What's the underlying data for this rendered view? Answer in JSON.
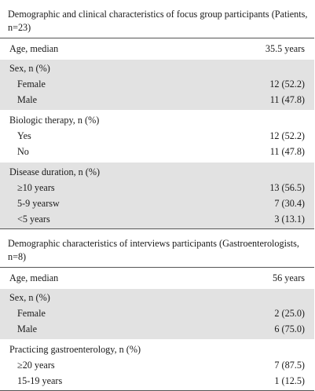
{
  "table1": {
    "caption": "Demographic and clinical characteristics of focus group participants (Patients, n=23)",
    "groups": [
      {
        "rows": [
          {
            "label": "Age, median",
            "value": "35.5 years"
          }
        ],
        "shaded": false
      },
      {
        "rows": [
          {
            "label": "Sex, n (%)",
            "value": ""
          },
          {
            "label": "Female",
            "value": "12 (52.2)"
          },
          {
            "label": "Male",
            "value": "11 (47.8)"
          }
        ],
        "shaded": true
      },
      {
        "rows": [
          {
            "label": "Biologic therapy, n (%)",
            "value": ""
          },
          {
            "label": "Yes",
            "value": "12 (52.2)"
          },
          {
            "label": "No",
            "value": "11 (47.8)"
          }
        ],
        "shaded": false
      },
      {
        "rows": [
          {
            "label": "Disease duration, n (%)",
            "value": ""
          },
          {
            "label": "≥10 years",
            "value": "13 (56.5)"
          },
          {
            "label": "5-9 yearsw",
            "value": "7 (30.4)"
          },
          {
            "label": "<5 years",
            "value": "3 (13.1)"
          }
        ],
        "shaded": true
      }
    ]
  },
  "table2": {
    "caption": "Demographic characteristics of interviews participants (Gastroenterologists, n=8)",
    "groups": [
      {
        "rows": [
          {
            "label": "Age, median",
            "value": "56 years"
          }
        ],
        "shaded": false
      },
      {
        "rows": [
          {
            "label": "Sex, n (%)",
            "value": ""
          },
          {
            "label": "Female",
            "value": "2 (25.0)"
          },
          {
            "label": "Male",
            "value": "6 (75.0)"
          }
        ],
        "shaded": true
      },
      {
        "rows": [
          {
            "label": "Practicing gastroenterology, n (%)",
            "value": ""
          },
          {
            "label": "≥20 years",
            "value": "7 (87.5)"
          },
          {
            "label": "15-19 years",
            "value": "1 (12.5)"
          }
        ],
        "shaded": false
      }
    ]
  }
}
